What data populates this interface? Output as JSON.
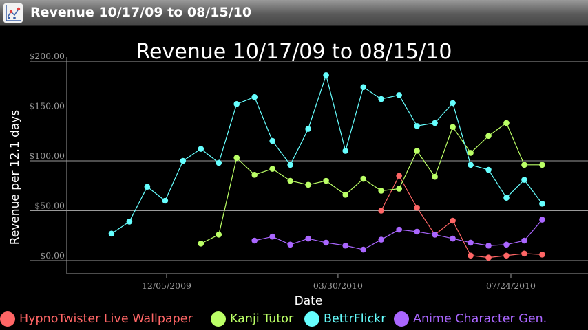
{
  "window": {
    "title": "Revenue 10/17/09 to 08/15/10",
    "icon": "chart-app-icon"
  },
  "colors": {
    "background": "#000000",
    "grid": "#9a9a9a",
    "text": "#ffffff",
    "HypnoTwister Live Wallpaper": "#ff6666",
    "Kanji Tutor": "#bbff66",
    "BettrFlickr": "#66ffff",
    "Anime Character Gen.": "#aa66ff"
  },
  "chart_data": {
    "type": "line",
    "title": "Revenue 10/17/09 to 08/15/10",
    "xlabel": "Date",
    "ylabel": "Revenue per 12.1 days",
    "ylim": [
      0,
      200
    ],
    "yticks": [
      0,
      50,
      100,
      150,
      200
    ],
    "ytick_labels": [
      "$0.00",
      "$50.00",
      "$100.00",
      "$150.00",
      "$200.00"
    ],
    "xlim": [
      "2009-10-17",
      "2010-08-15"
    ],
    "xticks": [
      "2009-12-05",
      "2010-03-30",
      "2010-07-24"
    ],
    "xtick_labels": [
      "12/05/2009",
      "03/30/2010",
      "07/24/2010"
    ],
    "grid": true,
    "legend_position": "bottom",
    "x": [
      "2009-10-29",
      "2009-11-10",
      "2009-11-22",
      "2009-12-04",
      "2009-12-16",
      "2009-12-28",
      "2010-01-09",
      "2010-01-21",
      "2010-02-02",
      "2010-02-14",
      "2010-02-26",
      "2010-03-10",
      "2010-03-22",
      "2010-04-04",
      "2010-04-16",
      "2010-04-28",
      "2010-05-10",
      "2010-05-22",
      "2010-06-03",
      "2010-06-15",
      "2010-06-27",
      "2010-07-09",
      "2010-07-21",
      "2010-08-02",
      "2010-08-14"
    ],
    "series": [
      {
        "name": "HypnoTwister Live Wallpaper",
        "color": "#ff6666",
        "values": [
          null,
          null,
          null,
          null,
          null,
          null,
          null,
          null,
          null,
          null,
          null,
          null,
          null,
          null,
          null,
          50,
          85,
          53,
          26,
          40,
          5,
          3,
          5,
          7,
          6
        ]
      },
      {
        "name": "Kanji Tutor",
        "color": "#bbff66",
        "values": [
          null,
          null,
          null,
          null,
          null,
          17,
          26,
          103,
          86,
          92,
          80,
          76,
          80,
          66,
          82,
          70,
          72,
          110,
          84,
          134,
          108,
          125,
          138,
          96,
          96
        ]
      },
      {
        "name": "BettrFlickr",
        "color": "#66ffff",
        "values": [
          27,
          39,
          74,
          60,
          100,
          112,
          98,
          157,
          164,
          120,
          96,
          132,
          186,
          110,
          174,
          162,
          166,
          135,
          138,
          158,
          96,
          91,
          63,
          81,
          57
        ]
      },
      {
        "name": "Anime Character Gen.",
        "color": "#aa66ff",
        "values": [
          null,
          null,
          null,
          null,
          null,
          null,
          null,
          null,
          20,
          24,
          16,
          22,
          18,
          15,
          11,
          21,
          31,
          29,
          26,
          22,
          18,
          15,
          16,
          20,
          41
        ]
      }
    ]
  }
}
